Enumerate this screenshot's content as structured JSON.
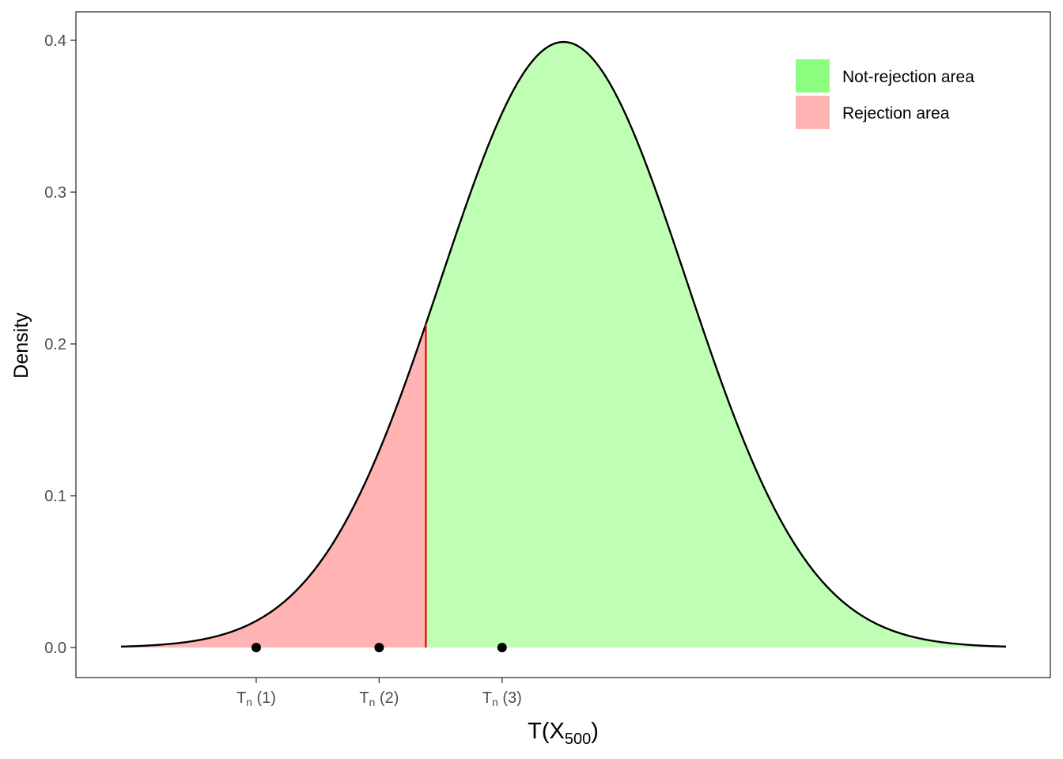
{
  "chart_data": {
    "type": "area",
    "xlabel": {
      "main": "T(X",
      "sub": "500",
      "close": ")"
    },
    "ylabel": "Density",
    "ylim": [
      0,
      0.4
    ],
    "xlim": [
      -3.6,
      3.6
    ],
    "yticks": [
      {
        "value": 0.0,
        "label": "0.0"
      },
      {
        "value": 0.1,
        "label": "0.1"
      },
      {
        "value": 0.2,
        "label": "0.2"
      },
      {
        "value": 0.3,
        "label": "0.3"
      },
      {
        "value": 0.4,
        "label": "0.4"
      }
    ],
    "xticks": [
      {
        "value": -2.5,
        "main": "T",
        "sub": "n",
        "suffix": " (1)"
      },
      {
        "value": -1.5,
        "main": "T",
        "sub": "n",
        "suffix": " (2)"
      },
      {
        "value": -0.5,
        "main": "T",
        "sub": "n",
        "suffix": " (3)"
      }
    ],
    "distribution": {
      "type": "normal",
      "mean": 0,
      "sd": 1
    },
    "critical_value": -1.12,
    "regions": [
      {
        "name": "Rejection area",
        "from": -3.6,
        "to": -1.12,
        "color": "#ffb3b3"
      },
      {
        "name": "Not-rejection area",
        "from": -1.12,
        "to": 3.6,
        "color": "#bfffb3"
      }
    ],
    "points": [
      {
        "x": -2.5,
        "y": 0
      },
      {
        "x": -1.5,
        "y": 0
      },
      {
        "x": -0.5,
        "y": 0
      }
    ],
    "legend": {
      "position": "top-right",
      "items": [
        {
          "label": "Not-rejection area",
          "color": "#8cff80"
        },
        {
          "label": "Rejection area",
          "color": "#ffb3b3"
        }
      ]
    },
    "colors": {
      "curve": "#000000",
      "critical_line": "#e60000",
      "panel_border": "#333333"
    },
    "grid": false
  }
}
